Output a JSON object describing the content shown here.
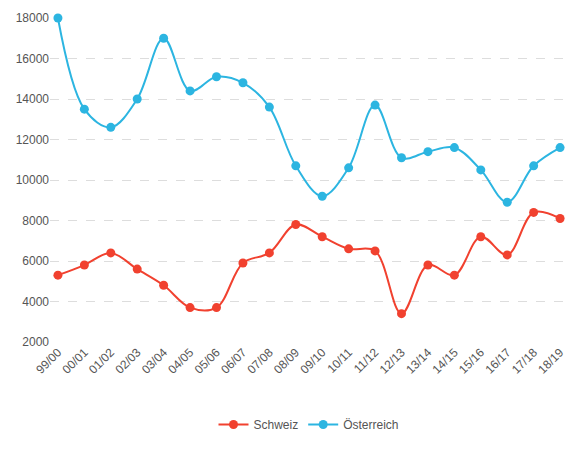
{
  "chart_data": {
    "type": "line",
    "categories": [
      "99/00",
      "00/01",
      "01/02",
      "02/03",
      "03/04",
      "04/05",
      "05/06",
      "06/07",
      "07/08",
      "08/09",
      "09/10",
      "10/11",
      "11/12",
      "12/13",
      "13/14",
      "14/15",
      "15/16",
      "16/17",
      "17/18",
      "18/19"
    ],
    "series": [
      {
        "name": "Schweiz",
        "color": "#f1412f",
        "values": [
          5300,
          5800,
          6400,
          5600,
          4800,
          3700,
          3700,
          5900,
          6400,
          7800,
          7200,
          6600,
          6500,
          3400,
          5800,
          5300,
          7200,
          6300,
          8400,
          8100
        ]
      },
      {
        "name": "Österreich",
        "color": "#2cb5e1",
        "values": [
          18000,
          13500,
          12600,
          14000,
          17000,
          14400,
          15100,
          14800,
          13600,
          10700,
          9200,
          10600,
          13700,
          11100,
          11400,
          11600,
          10500,
          8900,
          10700,
          11600
        ]
      }
    ],
    "ylim": [
      2000,
      18000
    ],
    "yticks": [
      2000,
      4000,
      6000,
      8000,
      10000,
      12000,
      14000,
      16000,
      18000
    ],
    "grid": true,
    "legend": "bottom",
    "marker": "circle",
    "line_style": "spline"
  }
}
